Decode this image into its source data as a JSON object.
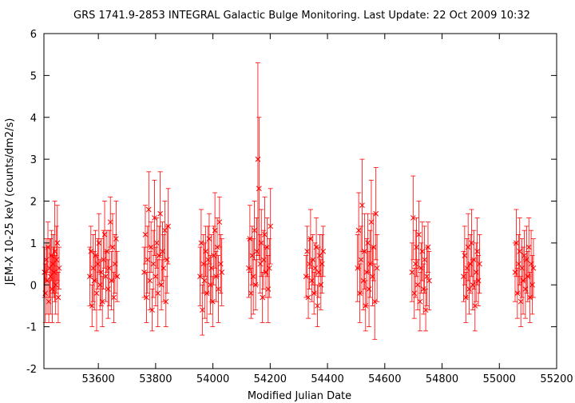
{
  "chart_data": {
    "type": "scatter",
    "title": "GRS 1741.9-2853   INTEGRAL Galactic Bulge Monitoring.  Last Update: 22 Oct 2009 10:32",
    "xlabel": "Modified Julian Date",
    "ylabel": "JEM-X 10-25 keV (counts/dm2/s)",
    "xlim": [
      53410,
      55200
    ],
    "ylim": [
      -2,
      6
    ],
    "xticks": [
      53600,
      53800,
      54000,
      54200,
      54400,
      54600,
      54800,
      55000,
      55200
    ],
    "yticks": [
      -2,
      -1,
      0,
      1,
      2,
      3,
      4,
      5,
      6
    ],
    "grid": false,
    "marker": "x",
    "color": "#ff0000",
    "series": [
      {
        "points": [
          {
            "x": 53412,
            "y": 0.3,
            "err": 0.6
          },
          {
            "x": 53415,
            "y": -0.2,
            "err": 0.7
          },
          {
            "x": 53418,
            "y": 0.6,
            "err": 0.5
          },
          {
            "x": 53421,
            "y": 0.1,
            "err": 0.8
          },
          {
            "x": 53424,
            "y": 0.9,
            "err": 0.6
          },
          {
            "x": 53427,
            "y": -0.4,
            "err": 0.5
          },
          {
            "x": 53430,
            "y": 0.4,
            "err": 0.7
          },
          {
            "x": 53433,
            "y": 0.2,
            "err": 0.9
          },
          {
            "x": 53436,
            "y": 0.7,
            "err": 0.6
          },
          {
            "x": 53439,
            "y": -0.1,
            "err": 0.8
          },
          {
            "x": 53442,
            "y": 0.5,
            "err": 0.7
          },
          {
            "x": 53445,
            "y": 0.3,
            "err": 0.6
          },
          {
            "x": 53448,
            "y": 0.8,
            "err": 1.2
          },
          {
            "x": 53451,
            "y": 0.0,
            "err": 0.7
          },
          {
            "x": 53454,
            "y": 0.6,
            "err": 0.8
          },
          {
            "x": 53457,
            "y": 1.0,
            "err": 0.9
          },
          {
            "x": 53460,
            "y": -0.3,
            "err": 0.6
          },
          {
            "x": 53463,
            "y": 0.4,
            "err": 0.5
          },
          {
            "x": 53570,
            "y": 0.2,
            "err": 0.7
          },
          {
            "x": 53574,
            "y": 0.8,
            "err": 0.6
          },
          {
            "x": 53578,
            "y": -0.5,
            "err": 0.5
          },
          {
            "x": 53582,
            "y": 0.4,
            "err": 0.8
          },
          {
            "x": 53586,
            "y": 0.1,
            "err": 0.7
          },
          {
            "x": 53590,
            "y": 0.7,
            "err": 0.6
          },
          {
            "x": 53594,
            "y": -0.2,
            "err": 0.9
          },
          {
            "x": 53598,
            "y": 0.5,
            "err": 0.6
          },
          {
            "x": 53602,
            "y": 1.0,
            "err": 0.7
          },
          {
            "x": 53606,
            "y": 0.0,
            "err": 0.6
          },
          {
            "x": 53610,
            "y": 0.3,
            "err": 0.8
          },
          {
            "x": 53614,
            "y": -0.4,
            "err": 0.6
          },
          {
            "x": 53618,
            "y": 0.6,
            "err": 0.7
          },
          {
            "x": 53622,
            "y": 1.2,
            "err": 0.8
          },
          {
            "x": 53626,
            "y": 0.2,
            "err": 0.6
          },
          {
            "x": 53630,
            "y": 0.8,
            "err": 0.5
          },
          {
            "x": 53634,
            "y": -0.1,
            "err": 0.7
          },
          {
            "x": 53638,
            "y": 0.4,
            "err": 0.9
          },
          {
            "x": 53642,
            "y": 1.5,
            "err": 0.6
          },
          {
            "x": 53646,
            "y": 0.1,
            "err": 0.7
          },
          {
            "x": 53650,
            "y": 0.9,
            "err": 0.8
          },
          {
            "x": 53654,
            "y": -0.3,
            "err": 0.6
          },
          {
            "x": 53658,
            "y": 0.5,
            "err": 0.7
          },
          {
            "x": 53662,
            "y": 1.1,
            "err": 0.9
          },
          {
            "x": 53666,
            "y": 0.2,
            "err": 0.6
          },
          {
            "x": 53760,
            "y": 0.3,
            "err": 0.6
          },
          {
            "x": 53764,
            "y": 1.2,
            "err": 0.7
          },
          {
            "x": 53768,
            "y": -0.3,
            "err": 0.6
          },
          {
            "x": 53772,
            "y": 0.6,
            "err": 0.8
          },
          {
            "x": 53776,
            "y": 1.8,
            "err": 0.9
          },
          {
            "x": 53780,
            "y": 0.1,
            "err": 0.7
          },
          {
            "x": 53784,
            "y": 0.9,
            "err": 0.6
          },
          {
            "x": 53788,
            "y": -0.6,
            "err": 0.5
          },
          {
            "x": 53792,
            "y": 0.5,
            "err": 0.8
          },
          {
            "x": 53796,
            "y": 1.6,
            "err": 0.9
          },
          {
            "x": 53800,
            "y": 0.2,
            "err": 0.7
          },
          {
            "x": 53804,
            "y": 1.0,
            "err": 0.6
          },
          {
            "x": 53808,
            "y": -0.2,
            "err": 0.8
          },
          {
            "x": 53812,
            "y": 0.7,
            "err": 0.7
          },
          {
            "x": 53816,
            "y": 1.7,
            "err": 1.0
          },
          {
            "x": 53820,
            "y": 0.0,
            "err": 0.6
          },
          {
            "x": 53824,
            "y": 0.8,
            "err": 0.7
          },
          {
            "x": 53828,
            "y": 0.4,
            "err": 0.8
          },
          {
            "x": 53832,
            "y": 1.3,
            "err": 0.7
          },
          {
            "x": 53836,
            "y": -0.4,
            "err": 0.6
          },
          {
            "x": 53840,
            "y": 0.6,
            "err": 0.8
          },
          {
            "x": 53844,
            "y": 1.4,
            "err": 0.9
          },
          {
            "x": 53955,
            "y": 0.2,
            "err": 0.7
          },
          {
            "x": 53959,
            "y": 1.0,
            "err": 0.8
          },
          {
            "x": 53963,
            "y": -0.6,
            "err": 0.6
          },
          {
            "x": 53967,
            "y": 0.5,
            "err": 0.7
          },
          {
            "x": 53971,
            "y": 0.1,
            "err": 0.9
          },
          {
            "x": 53975,
            "y": 0.8,
            "err": 0.6
          },
          {
            "x": 53979,
            "y": -0.2,
            "err": 0.7
          },
          {
            "x": 53983,
            "y": 0.6,
            "err": 0.8
          },
          {
            "x": 53987,
            "y": 1.1,
            "err": 0.6
          },
          {
            "x": 53991,
            "y": 0.0,
            "err": 0.7
          },
          {
            "x": 53995,
            "y": 0.4,
            "err": 0.8
          },
          {
            "x": 53999,
            "y": -0.4,
            "err": 0.6
          },
          {
            "x": 54003,
            "y": 0.7,
            "err": 0.7
          },
          {
            "x": 54007,
            "y": 1.3,
            "err": 0.9
          },
          {
            "x": 54011,
            "y": 0.2,
            "err": 0.6
          },
          {
            "x": 54015,
            "y": 0.9,
            "err": 0.7
          },
          {
            "x": 54019,
            "y": -0.1,
            "err": 0.8
          },
          {
            "x": 54023,
            "y": 1.5,
            "err": 0.6
          },
          {
            "x": 54027,
            "y": 0.5,
            "err": 0.7
          },
          {
            "x": 54031,
            "y": 0.3,
            "err": 0.8
          },
          {
            "x": 54125,
            "y": 0.4,
            "err": 0.7
          },
          {
            "x": 54129,
            "y": 1.1,
            "err": 0.8
          },
          {
            "x": 54133,
            "y": -0.2,
            "err": 0.6
          },
          {
            "x": 54137,
            "y": 0.7,
            "err": 0.7
          },
          {
            "x": 54141,
            "y": 0.2,
            "err": 0.9
          },
          {
            "x": 54145,
            "y": 1.3,
            "err": 0.7
          },
          {
            "x": 54149,
            "y": 0.0,
            "err": 0.6
          },
          {
            "x": 54153,
            "y": 0.8,
            "err": 0.8
          },
          {
            "x": 54157,
            "y": 3.0,
            "err": 2.3
          },
          {
            "x": 54161,
            "y": 2.3,
            "err": 1.7
          },
          {
            "x": 54165,
            "y": 0.5,
            "err": 0.7
          },
          {
            "x": 54169,
            "y": 1.0,
            "err": 0.8
          },
          {
            "x": 54173,
            "y": -0.3,
            "err": 0.6
          },
          {
            "x": 54177,
            "y": 0.6,
            "err": 0.7
          },
          {
            "x": 54181,
            "y": 1.2,
            "err": 0.9
          },
          {
            "x": 54185,
            "y": 0.3,
            "err": 0.6
          },
          {
            "x": 54189,
            "y": 0.9,
            "err": 0.7
          },
          {
            "x": 54193,
            "y": -0.1,
            "err": 0.8
          },
          {
            "x": 54197,
            "y": 0.4,
            "err": 0.7
          },
          {
            "x": 54201,
            "y": 1.4,
            "err": 0.9
          },
          {
            "x": 54325,
            "y": 0.2,
            "err": 0.5
          },
          {
            "x": 54329,
            "y": 0.8,
            "err": 0.6
          },
          {
            "x": 54333,
            "y": -0.3,
            "err": 0.5
          },
          {
            "x": 54337,
            "y": 0.5,
            "err": 0.6
          },
          {
            "x": 54341,
            "y": 1.1,
            "err": 0.7
          },
          {
            "x": 54345,
            "y": 0.1,
            "err": 0.5
          },
          {
            "x": 54349,
            "y": 0.6,
            "err": 0.6
          },
          {
            "x": 54353,
            "y": -0.2,
            "err": 0.5
          },
          {
            "x": 54357,
            "y": 0.4,
            "err": 0.6
          },
          {
            "x": 54361,
            "y": 0.9,
            "err": 0.7
          },
          {
            "x": 54365,
            "y": -0.5,
            "err": 0.5
          },
          {
            "x": 54369,
            "y": 0.3,
            "err": 0.6
          },
          {
            "x": 54373,
            "y": 0.7,
            "err": 0.5
          },
          {
            "x": 54377,
            "y": 0.0,
            "err": 0.6
          },
          {
            "x": 54381,
            "y": 0.5,
            "err": 0.7
          },
          {
            "x": 54385,
            "y": 0.8,
            "err": 0.6
          },
          {
            "x": 54505,
            "y": 0.4,
            "err": 0.8
          },
          {
            "x": 54509,
            "y": 1.3,
            "err": 0.9
          },
          {
            "x": 54513,
            "y": -0.2,
            "err": 0.7
          },
          {
            "x": 54517,
            "y": 0.6,
            "err": 0.8
          },
          {
            "x": 54521,
            "y": 1.9,
            "err": 1.1
          },
          {
            "x": 54525,
            "y": 0.1,
            "err": 0.7
          },
          {
            "x": 54529,
            "y": 0.8,
            "err": 0.9
          },
          {
            "x": 54533,
            "y": -0.5,
            "err": 0.6
          },
          {
            "x": 54537,
            "y": 0.3,
            "err": 0.8
          },
          {
            "x": 54541,
            "y": 1.0,
            "err": 0.7
          },
          {
            "x": 54545,
            "y": -0.1,
            "err": 0.9
          },
          {
            "x": 54549,
            "y": 0.5,
            "err": 0.8
          },
          {
            "x": 54553,
            "y": 1.5,
            "err": 1.0
          },
          {
            "x": 54557,
            "y": 0.2,
            "err": 0.7
          },
          {
            "x": 54561,
            "y": 0.9,
            "err": 0.8
          },
          {
            "x": 54565,
            "y": -0.4,
            "err": 0.9
          },
          {
            "x": 54569,
            "y": 1.7,
            "err": 1.1
          },
          {
            "x": 54573,
            "y": 0.4,
            "err": 0.8
          },
          {
            "x": 54695,
            "y": 0.3,
            "err": 0.7
          },
          {
            "x": 54699,
            "y": 1.6,
            "err": 1.0
          },
          {
            "x": 54703,
            "y": -0.2,
            "err": 0.6
          },
          {
            "x": 54707,
            "y": 0.5,
            "err": 0.8
          },
          {
            "x": 54711,
            "y": 0.9,
            "err": 0.7
          },
          {
            "x": 54715,
            "y": 0.0,
            "err": 0.6
          },
          {
            "x": 54719,
            "y": 1.2,
            "err": 0.8
          },
          {
            "x": 54723,
            "y": -0.4,
            "err": 0.7
          },
          {
            "x": 54727,
            "y": 0.4,
            "err": 0.6
          },
          {
            "x": 54731,
            "y": 0.8,
            "err": 0.7
          },
          {
            "x": 54735,
            "y": -0.1,
            "err": 0.6
          },
          {
            "x": 54739,
            "y": 0.6,
            "err": 0.8
          },
          {
            "x": 54743,
            "y": -0.6,
            "err": 0.5
          },
          {
            "x": 54747,
            "y": 0.2,
            "err": 0.7
          },
          {
            "x": 54751,
            "y": 0.9,
            "err": 0.6
          },
          {
            "x": 54755,
            "y": 0.1,
            "err": 0.7
          },
          {
            "x": 54875,
            "y": 0.2,
            "err": 0.6
          },
          {
            "x": 54879,
            "y": 0.7,
            "err": 0.7
          },
          {
            "x": 54883,
            "y": -0.3,
            "err": 0.6
          },
          {
            "x": 54887,
            "y": 0.4,
            "err": 0.7
          },
          {
            "x": 54891,
            "y": 0.9,
            "err": 0.8
          },
          {
            "x": 54895,
            "y": -0.1,
            "err": 0.6
          },
          {
            "x": 54899,
            "y": 0.5,
            "err": 0.7
          },
          {
            "x": 54903,
            "y": 1.0,
            "err": 0.8
          },
          {
            "x": 54907,
            "y": 0.0,
            "err": 0.6
          },
          {
            "x": 54911,
            "y": 0.6,
            "err": 0.7
          },
          {
            "x": 54915,
            "y": -0.5,
            "err": 0.6
          },
          {
            "x": 54919,
            "y": 0.3,
            "err": 0.7
          },
          {
            "x": 54923,
            "y": 0.8,
            "err": 0.8
          },
          {
            "x": 54927,
            "y": 0.1,
            "err": 0.6
          },
          {
            "x": 54931,
            "y": 0.5,
            "err": 0.7
          },
          {
            "x": 55055,
            "y": 0.3,
            "err": 0.7
          },
          {
            "x": 55059,
            "y": 1.0,
            "err": 0.8
          },
          {
            "x": 55063,
            "y": -0.2,
            "err": 0.6
          },
          {
            "x": 55067,
            "y": 0.5,
            "err": 0.7
          },
          {
            "x": 55071,
            "y": 0.8,
            "err": 0.8
          },
          {
            "x": 55075,
            "y": -0.4,
            "err": 0.6
          },
          {
            "x": 55079,
            "y": 0.4,
            "err": 0.7
          },
          {
            "x": 55083,
            "y": 0.1,
            "err": 0.8
          },
          {
            "x": 55087,
            "y": 0.7,
            "err": 0.6
          },
          {
            "x": 55091,
            "y": -0.1,
            "err": 0.7
          },
          {
            "x": 55095,
            "y": 0.6,
            "err": 0.8
          },
          {
            "x": 55099,
            "y": 0.2,
            "err": 0.6
          },
          {
            "x": 55103,
            "y": 0.9,
            "err": 0.7
          },
          {
            "x": 55107,
            "y": -0.3,
            "err": 0.6
          },
          {
            "x": 55111,
            "y": 0.5,
            "err": 0.8
          },
          {
            "x": 55115,
            "y": 0.0,
            "err": 0.7
          },
          {
            "x": 55119,
            "y": 0.4,
            "err": 0.7
          }
        ]
      }
    ]
  }
}
